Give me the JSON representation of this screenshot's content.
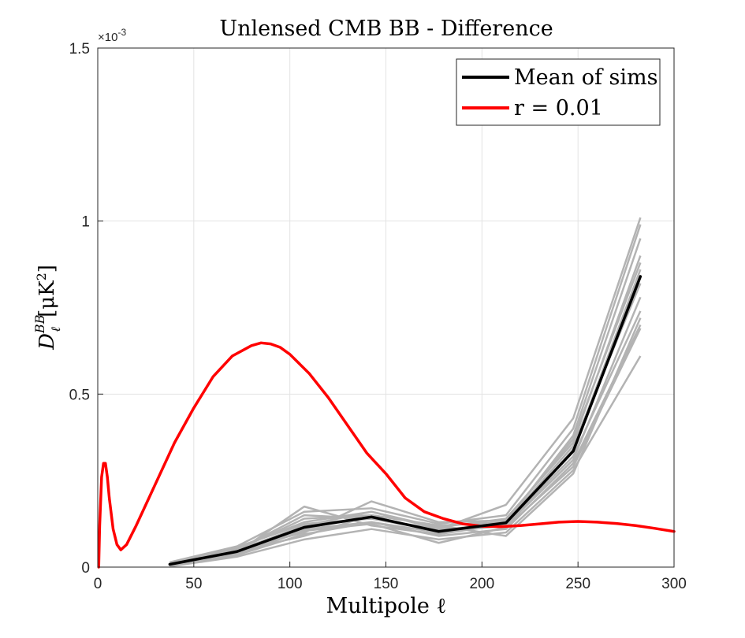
{
  "chart_data": {
    "type": "line",
    "title": "Unlensed CMB BB - Difference",
    "xlabel": "Multipole ℓ",
    "ylabel": {
      "main": "D",
      "subscript": "ℓ",
      "superscript": "BB",
      "unit": "[μK",
      "unit_power": "2",
      "unit_close": "]"
    },
    "y_exponent_label": "×10",
    "y_exponent_power": "-3",
    "xlim": [
      0,
      300
    ],
    "ylim": [
      0,
      1.5
    ],
    "xticks": [
      0,
      50,
      100,
      150,
      200,
      250,
      300
    ],
    "xtick_labels": [
      "0",
      "50",
      "100",
      "150",
      "200",
      "250",
      "300"
    ],
    "yticks": [
      0,
      0.5,
      1,
      1.5
    ],
    "ytick_labels": [
      "0",
      "0.5",
      "1",
      "1.5"
    ],
    "grid": true,
    "legend_position": "top-right",
    "colors": {
      "mean": "#000000",
      "theory": "#ff0000",
      "sims": "#b3b3b3",
      "grid": "#e3e3e3",
      "axes": "#262626"
    },
    "series": [
      {
        "name": "Mean of sims",
        "x": [
          37.5,
          72.5,
          107.5,
          142.5,
          177.5,
          212.5,
          247.5,
          282.5
        ],
        "y": [
          0.008,
          0.045,
          0.115,
          0.145,
          0.103,
          0.128,
          0.335,
          0.84
        ]
      },
      {
        "name": "r = 0.01",
        "x": [
          0.5,
          1,
          2,
          3,
          4,
          5,
          6,
          8,
          10,
          12,
          15,
          20,
          30,
          40,
          50,
          60,
          70,
          80,
          85,
          90,
          95,
          100,
          110,
          120,
          130,
          140,
          150,
          160,
          170,
          180,
          190,
          200,
          210,
          220,
          230,
          240,
          250,
          260,
          270,
          280,
          290,
          300
        ],
        "y": [
          0.0,
          0.12,
          0.26,
          0.3,
          0.3,
          0.26,
          0.2,
          0.11,
          0.065,
          0.05,
          0.065,
          0.12,
          0.24,
          0.36,
          0.46,
          0.55,
          0.61,
          0.64,
          0.648,
          0.645,
          0.635,
          0.615,
          0.56,
          0.49,
          0.41,
          0.33,
          0.27,
          0.2,
          0.16,
          0.14,
          0.125,
          0.118,
          0.117,
          0.12,
          0.125,
          0.13,
          0.132,
          0.13,
          0.126,
          0.12,
          0.112,
          0.103
        ]
      }
    ],
    "sims": {
      "x": [
        37.5,
        72.5,
        107.5,
        142.5,
        177.5,
        212.5,
        247.5,
        282.5
      ],
      "realizations": [
        [
          0.004,
          0.035,
          0.095,
          0.13,
          0.09,
          0.11,
          0.3,
          0.7
        ],
        [
          0.012,
          0.055,
          0.13,
          0.16,
          0.115,
          0.14,
          0.36,
          0.9
        ],
        [
          0.008,
          0.045,
          0.115,
          0.145,
          0.103,
          0.128,
          0.335,
          0.84
        ],
        [
          0.006,
          0.05,
          0.14,
          0.15,
          0.12,
          0.13,
          0.38,
          0.95
        ],
        [
          0.01,
          0.04,
          0.11,
          0.13,
          0.1,
          0.12,
          0.31,
          0.78
        ],
        [
          0.002,
          0.03,
          0.08,
          0.11,
          0.08,
          0.1,
          0.28,
          0.61
        ],
        [
          0.014,
          0.06,
          0.16,
          0.17,
          0.125,
          0.15,
          0.4,
          0.99
        ],
        [
          0.009,
          0.048,
          0.12,
          0.16,
          0.11,
          0.12,
          0.34,
          0.86
        ],
        [
          0.007,
          0.042,
          0.175,
          0.12,
          0.095,
          0.125,
          0.32,
          0.74
        ],
        [
          0.011,
          0.052,
          0.1,
          0.19,
          0.13,
          0.135,
          0.37,
          0.88
        ],
        [
          0.005,
          0.038,
          0.105,
          0.125,
          0.07,
          0.115,
          0.29,
          0.69
        ],
        [
          0.013,
          0.058,
          0.125,
          0.14,
          0.11,
          0.18,
          0.43,
          1.01
        ],
        [
          0.008,
          0.046,
          0.09,
          0.15,
          0.12,
          0.09,
          0.27,
          0.72
        ],
        [
          0.01,
          0.05,
          0.15,
          0.14,
          0.105,
          0.13,
          0.35,
          0.82
        ]
      ]
    }
  }
}
